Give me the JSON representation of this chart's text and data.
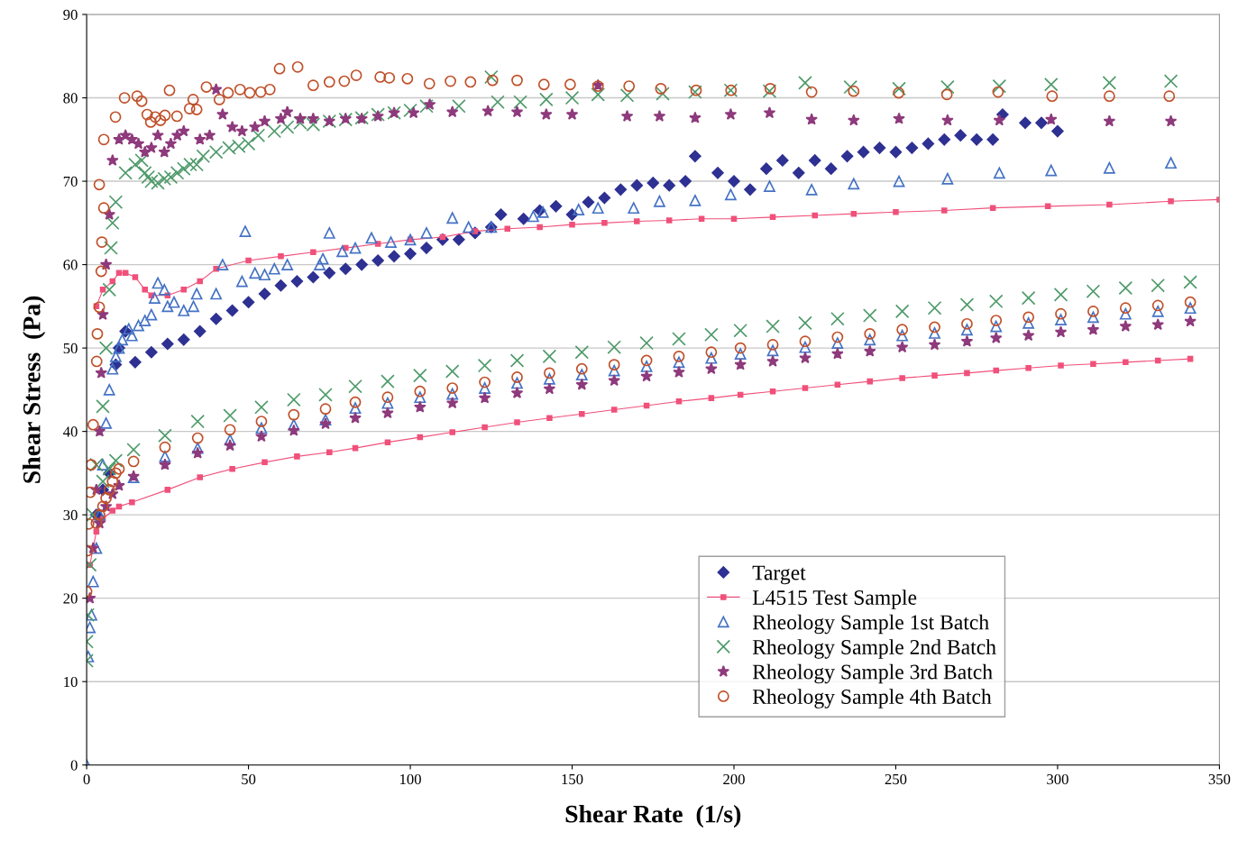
{
  "chart_data": {
    "type": "scatter",
    "xlabel": "Shear Rate  (1/s)",
    "ylabel": "Shear Stress  (Pa)",
    "xlim": [
      0,
      350
    ],
    "ylim": [
      0,
      90
    ],
    "xticks": [
      0,
      50,
      100,
      150,
      200,
      250,
      300,
      350
    ],
    "yticks": [
      0,
      10,
      20,
      30,
      40,
      50,
      60,
      70,
      80,
      90
    ],
    "grid": "y",
    "legend": "bottom right",
    "series": [
      {
        "name": "Target",
        "marker": "diamond",
        "color": "#2e3192",
        "x": [
          3,
          5,
          7,
          9,
          10,
          12,
          15,
          20,
          25,
          30,
          35,
          40,
          45,
          50,
          55,
          60,
          65,
          70,
          75,
          80,
          85,
          90,
          95,
          100,
          105,
          110,
          115,
          120,
          125,
          128,
          135,
          140,
          145,
          150,
          155,
          160,
          165,
          170,
          175,
          180,
          185,
          188,
          195,
          200,
          205,
          210,
          215,
          220,
          225,
          230,
          235,
          240,
          245,
          250,
          255,
          260,
          265,
          270,
          275,
          280,
          283,
          290,
          295,
          300
        ],
        "values": [
          30,
          33,
          35,
          48,
          50,
          52,
          48.3,
          49.5,
          50.5,
          51,
          52,
          53.5,
          54.5,
          55.5,
          56.5,
          57.5,
          58,
          58.5,
          59,
          59.5,
          60,
          60.5,
          61,
          61.3,
          62,
          63,
          63,
          63.8,
          64.5,
          66,
          65.5,
          66.5,
          67,
          66,
          67.5,
          68,
          69,
          69.5,
          69.8,
          69.5,
          70,
          73,
          71,
          70,
          69,
          71.5,
          72.5,
          71,
          72.5,
          71.5,
          73,
          73.5,
          74,
          73.5,
          74,
          74.5,
          75,
          75.5,
          75,
          75,
          78,
          77,
          77,
          76
        ]
      },
      {
        "name": "L4515 Test Sample",
        "type": "line",
        "marker": "square",
        "line_style": "solid",
        "color": "#f0507a",
        "x": [
          3,
          5,
          8,
          10,
          12,
          15,
          18,
          20,
          25,
          30,
          35,
          40,
          50,
          60,
          70,
          80,
          90,
          100,
          110,
          120,
          130,
          140,
          150,
          160,
          170,
          180,
          190,
          200,
          212,
          225,
          237,
          250,
          265,
          280,
          297,
          316,
          335,
          350,
          null,
          1,
          3,
          5,
          8,
          10,
          14,
          25,
          35,
          45,
          55,
          65,
          75,
          83,
          93,
          103,
          113,
          123,
          133,
          143,
          153,
          163,
          173,
          183,
          193,
          202,
          212,
          222,
          232,
          242,
          252,
          262,
          272,
          281,
          291,
          301,
          311,
          321,
          331,
          341
        ],
        "values": [
          55,
          57,
          58,
          59,
          59,
          58.5,
          57,
          56.3,
          56.3,
          57,
          58,
          59.5,
          60.5,
          61,
          61.5,
          62,
          62.5,
          63,
          63.3,
          64,
          64.3,
          64.5,
          64.8,
          65,
          65.2,
          65.3,
          65.5,
          65.5,
          65.7,
          65.9,
          66.1,
          66.3,
          66.5,
          66.8,
          67,
          67.2,
          67.6,
          67.8,
          null,
          24,
          28,
          29.5,
          30.5,
          31,
          31.5,
          33,
          34.5,
          35.5,
          36.3,
          37,
          37.5,
          38,
          38.7,
          39.3,
          39.9,
          40.5,
          41.1,
          41.6,
          42.1,
          42.6,
          43.1,
          43.6,
          44,
          44.4,
          44.8,
          45.2,
          45.6,
          46,
          46.4,
          46.7,
          47,
          47.3,
          47.6,
          47.9,
          48.1,
          48.3,
          48.5,
          48.7
        ]
      },
      {
        "name": "Rheology Sample 1st Batch",
        "marker": "triangle",
        "color": "#4472c4",
        "x": [
          0,
          0.5,
          1,
          1.5,
          2,
          3,
          4,
          5,
          6,
          7,
          8,
          9,
          10,
          11,
          13,
          14,
          16,
          18,
          20,
          21,
          22,
          24,
          25,
          27,
          30,
          33,
          34,
          40,
          42,
          48,
          49,
          52,
          55,
          58,
          62,
          72,
          73,
          75,
          79,
          83,
          88,
          94,
          100,
          105,
          113,
          118,
          125,
          138,
          141,
          152,
          158,
          169,
          177,
          188,
          199,
          211,
          224,
          237,
          251,
          266,
          282,
          298,
          316,
          335,
          14.5,
          24.2,
          34.3,
          44.3,
          54,
          64,
          73.8,
          83,
          93,
          103,
          113,
          123,
          133,
          143,
          153,
          163,
          173,
          183,
          193,
          202,
          212,
          222,
          232,
          242,
          252,
          262,
          272,
          281,
          291,
          301,
          311,
          321,
          331,
          341
        ],
        "values": [
          0,
          13,
          16.5,
          18,
          22,
          26,
          30,
          36,
          41,
          45,
          47.5,
          49,
          50,
          51,
          52.3,
          51.5,
          52.7,
          53.3,
          54,
          56,
          57.8,
          57,
          55,
          55.5,
          54.5,
          55,
          56.5,
          56.5,
          60,
          58,
          64,
          59,
          58.8,
          59.5,
          60,
          60,
          60.7,
          63.8,
          61.6,
          62,
          63.2,
          62.7,
          63,
          63.8,
          65.6,
          64.5,
          64.5,
          65.8,
          66.3,
          66.6,
          66.8,
          66.8,
          67.6,
          67.7,
          68.4,
          69.4,
          69,
          69.7,
          70,
          70.3,
          71,
          71.3,
          71.6,
          72.2,
          34.5,
          37,
          38,
          39,
          40.4,
          40.8,
          41.4,
          42.8,
          43.4,
          44.1,
          44.5,
          45.2,
          45.8,
          46.3,
          46.8,
          47.3,
          47.8,
          48.3,
          48.8,
          49.3,
          49.7,
          50.1,
          50.6,
          51,
          51.5,
          51.8,
          52.2,
          52.6,
          53,
          53.4,
          53.7,
          54.1,
          54.4,
          54.8
        ]
      },
      {
        "name": "Rheology Sample 2nd Batch",
        "marker": "cross",
        "color": "#4e9a6a",
        "x": [
          0,
          0,
          0.3,
          1,
          2,
          3,
          5,
          6,
          7,
          7.5,
          8,
          9,
          12,
          15,
          17,
          18,
          19,
          20,
          22,
          24,
          26,
          28,
          30,
          32,
          34,
          36,
          40,
          44,
          47,
          50,
          53,
          58,
          62,
          66,
          70,
          75,
          80,
          85,
          90,
          95,
          100,
          105,
          115,
          125,
          127,
          134,
          142,
          150,
          158,
          167,
          178,
          188,
          199,
          211,
          222,
          236,
          251,
          266,
          282,
          298,
          316,
          335,
          5,
          7,
          9,
          14.5,
          24.2,
          34.3,
          44.3,
          54,
          64,
          73.8,
          83,
          93,
          103,
          113,
          123,
          133,
          143,
          153,
          163,
          173,
          183,
          193,
          202,
          212,
          222,
          232,
          242,
          252,
          262,
          272,
          281,
          291,
          301,
          311,
          321,
          331,
          341
        ],
        "values": [
          12.5,
          14.8,
          18,
          24,
          30,
          36,
          43,
          50,
          57,
          62,
          65,
          67.5,
          71,
          72,
          72.5,
          71,
          70.5,
          70,
          69.8,
          70.3,
          70.5,
          71,
          71.5,
          72,
          72,
          73,
          73.5,
          74,
          74.2,
          74.5,
          75.5,
          76,
          76.5,
          77,
          76.8,
          77.2,
          77.4,
          77.6,
          78,
          78.2,
          78.5,
          79,
          79,
          82.5,
          79.5,
          79.5,
          79.8,
          80,
          80.4,
          80.3,
          80.5,
          80.7,
          80.9,
          80.8,
          81.8,
          81.3,
          81.1,
          81.3,
          81.4,
          81.6,
          81.8,
          82,
          34,
          35.5,
          36.5,
          37.8,
          39.5,
          41.2,
          41.9,
          42.9,
          43.8,
          44.4,
          45.4,
          46,
          46.7,
          47.2,
          47.9,
          48.5,
          49,
          49.5,
          50.1,
          50.6,
          51.1,
          51.6,
          52.1,
          52.6,
          53,
          53.5,
          53.9,
          54.4,
          54.8,
          55.2,
          55.6,
          56,
          56.4,
          56.8,
          57.2,
          57.5,
          57.9
        ]
      },
      {
        "name": "Rheology Sample 3rd Batch",
        "marker": "star",
        "color": "#8e3a7c",
        "x": [
          1,
          2,
          3,
          4,
          4.5,
          5,
          6,
          7,
          8,
          10,
          12,
          14,
          16,
          18,
          20,
          22,
          24,
          26,
          28,
          30,
          35,
          38,
          40,
          42,
          45,
          48,
          52,
          55,
          60,
          62,
          66,
          70,
          75,
          80,
          85,
          90,
          95,
          101,
          106,
          113,
          124,
          133,
          142,
          150,
          158,
          167,
          177,
          188,
          199,
          211,
          224,
          237,
          251,
          266,
          282,
          298,
          316,
          335,
          4,
          6,
          8,
          10,
          14.5,
          24.2,
          34.3,
          44.3,
          54,
          64,
          73.8,
          83,
          93,
          103,
          113,
          123,
          133,
          143,
          153,
          163,
          173,
          183,
          193,
          202,
          212,
          222,
          232,
          242,
          252,
          262,
          272,
          281,
          291,
          301,
          311,
          321,
          331,
          341
        ],
        "values": [
          20,
          26,
          33,
          40,
          47,
          54,
          60,
          66,
          72.5,
          75,
          75.5,
          75,
          74.5,
          73.5,
          74,
          75.5,
          73.5,
          74.5,
          75.5,
          76,
          75,
          75.5,
          81,
          78,
          76.5,
          76,
          76.5,
          77.2,
          77.5,
          78.3,
          77.5,
          77.5,
          77.2,
          77.5,
          77.5,
          77.8,
          78.2,
          78.2,
          79.2,
          78.3,
          78.4,
          78.3,
          78,
          78,
          81.5,
          77.8,
          77.8,
          77.6,
          78,
          78.2,
          77.4,
          77.3,
          77.5,
          77.3,
          77.3,
          77.4,
          77.2,
          77.2,
          29,
          31,
          32.5,
          33.5,
          34.6,
          36,
          37.4,
          38.3,
          39.4,
          40.1,
          40.9,
          41.6,
          42.2,
          42.9,
          43.4,
          44,
          44.6,
          45.1,
          45.6,
          46.1,
          46.6,
          47.1,
          47.5,
          48,
          48.4,
          48.8,
          49.3,
          49.6,
          50.1,
          50.4,
          50.8,
          51.2,
          51.5,
          51.9,
          52.2,
          52.6,
          52.8,
          53.2
        ]
      },
      {
        "name": "Rheology Sample 4th Batch",
        "marker": "circle",
        "color": "#c0502a",
        "x": [
          0,
          0.3,
          0.6,
          1.1,
          1.4,
          2,
          3.1,
          3.3,
          3.9,
          4.5,
          4.7,
          5.3,
          3.9,
          5.3,
          8.9,
          11.7,
          15.6,
          17,
          18.7,
          19.8,
          21.2,
          22.8,
          24.2,
          25.6,
          27.9,
          31.8,
          32.9,
          34,
          37,
          41,
          43.7,
          47.4,
          50.4,
          53.8,
          56.6,
          59.6,
          65.2,
          70,
          75,
          79.6,
          83.3,
          90.7,
          93.5,
          99.1,
          105.9,
          112.4,
          118.6,
          125.4,
          133,
          141.3,
          149.4,
          158,
          167.6,
          177.4,
          188.3,
          199.1,
          211.2,
          224,
          237,
          250.9,
          265.8,
          281.6,
          298.3,
          316,
          334.5,
          3,
          4,
          5,
          6,
          7,
          8,
          9,
          10,
          14.5,
          24.2,
          34.3,
          44.3,
          54,
          64,
          73.8,
          83,
          93,
          103,
          113,
          123,
          133,
          143,
          153,
          163,
          173,
          183,
          193,
          202,
          212,
          222,
          232,
          242,
          252,
          262,
          272,
          281,
          291,
          301,
          311,
          321,
          331,
          341
        ],
        "values": [
          20.8,
          25.7,
          28.9,
          32.7,
          36,
          40.8,
          48.4,
          51.7,
          54.9,
          59.2,
          62.7,
          66.8,
          69.6,
          75,
          77.7,
          80,
          80.2,
          79.6,
          78,
          77.1,
          77.7,
          77.3,
          77.9,
          80.9,
          77.8,
          78.7,
          79.8,
          78.6,
          81.3,
          79.8,
          80.6,
          81,
          80.6,
          80.7,
          81,
          83.5,
          83.7,
          81.5,
          81.9,
          82,
          82.7,
          82.5,
          82.4,
          82.3,
          81.7,
          82,
          81.9,
          82.1,
          82.1,
          81.6,
          81.6,
          81.4,
          81.4,
          81.1,
          80.9,
          80.9,
          81.1,
          80.7,
          80.8,
          80.6,
          80.4,
          80.7,
          80.2,
          80.2,
          80.2,
          29,
          30,
          31,
          32,
          33,
          34,
          35,
          35.5,
          36.4,
          38.1,
          39.2,
          40.2,
          41.2,
          42,
          42.7,
          43.5,
          44.1,
          44.8,
          45.2,
          45.9,
          46.5,
          47,
          47.5,
          48,
          48.5,
          49,
          49.5,
          50,
          50.4,
          50.8,
          51.3,
          51.7,
          52.2,
          52.5,
          52.9,
          53.3,
          53.7,
          54.1,
          54.4,
          54.8,
          55.1,
          55.5
        ]
      }
    ]
  }
}
